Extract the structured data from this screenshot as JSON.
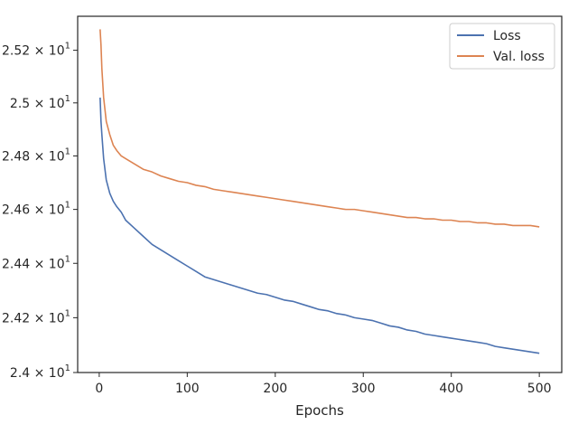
{
  "chart_data": {
    "type": "line",
    "title": "",
    "xlabel": "Epochs",
    "ylabel": "",
    "y_scale": "log",
    "xlim": [
      -24.5,
      525.5
    ],
    "ylim": [
      24.0,
      25.33
    ],
    "x_ticks": [
      0,
      100,
      200,
      300,
      400,
      500
    ],
    "x_tick_labels": [
      "0",
      "100",
      "200",
      "300",
      "400",
      "500"
    ],
    "y_ticks": [
      24.0,
      24.2,
      24.4,
      24.6,
      24.8,
      25.0,
      25.2
    ],
    "y_tick_labels": [
      {
        "mantissa": "2.4 × 10",
        "exponent": "1"
      },
      {
        "mantissa": "2.42 × 10",
        "exponent": "1"
      },
      {
        "mantissa": "2.44 × 10",
        "exponent": "1"
      },
      {
        "mantissa": "2.46 × 10",
        "exponent": "1"
      },
      {
        "mantissa": "2.48 × 10",
        "exponent": "1"
      },
      {
        "mantissa": "2.5 × 10",
        "exponent": "1"
      },
      {
        "mantissa": "2.52 × 10",
        "exponent": "1"
      }
    ],
    "grid": false,
    "legend_position": "top-right",
    "series": [
      {
        "name": "Loss",
        "color": "#4c72b0",
        "x": [
          1,
          2,
          3,
          5,
          8,
          12,
          16,
          20,
          25,
          30,
          40,
          50,
          60,
          70,
          80,
          90,
          100,
          110,
          120,
          130,
          140,
          150,
          160,
          170,
          180,
          190,
          200,
          210,
          220,
          230,
          240,
          250,
          260,
          270,
          280,
          290,
          300,
          310,
          320,
          330,
          340,
          350,
          360,
          370,
          380,
          390,
          400,
          410,
          420,
          430,
          440,
          450,
          460,
          470,
          480,
          490,
          500
        ],
        "y": [
          25.02,
          24.93,
          24.88,
          24.79,
          24.71,
          24.66,
          24.63,
          24.61,
          24.59,
          24.56,
          24.53,
          24.5,
          24.47,
          24.45,
          24.43,
          24.41,
          24.39,
          24.37,
          24.35,
          24.34,
          24.33,
          24.32,
          24.31,
          24.3,
          24.29,
          24.285,
          24.275,
          24.265,
          24.26,
          24.25,
          24.24,
          24.23,
          24.225,
          24.215,
          24.21,
          24.2,
          24.195,
          24.19,
          24.18,
          24.17,
          24.165,
          24.155,
          24.15,
          24.14,
          24.135,
          24.13,
          24.125,
          24.12,
          24.115,
          24.11,
          24.105,
          24.095,
          24.09,
          24.085,
          24.08,
          24.075,
          24.07
        ]
      },
      {
        "name": "Val. loss",
        "color": "#dd8452",
        "x": [
          1,
          2,
          3,
          5,
          8,
          12,
          16,
          20,
          25,
          30,
          40,
          50,
          60,
          70,
          80,
          90,
          100,
          110,
          120,
          130,
          140,
          150,
          160,
          170,
          180,
          190,
          200,
          210,
          220,
          230,
          240,
          250,
          260,
          270,
          280,
          290,
          300,
          310,
          320,
          330,
          340,
          350,
          360,
          370,
          380,
          390,
          400,
          410,
          420,
          430,
          440,
          450,
          460,
          470,
          480,
          490,
          500
        ],
        "y": [
          25.28,
          25.22,
          25.13,
          25.02,
          24.93,
          24.88,
          24.84,
          24.82,
          24.8,
          24.79,
          24.77,
          24.75,
          24.74,
          24.725,
          24.715,
          24.705,
          24.7,
          24.69,
          24.685,
          24.675,
          24.67,
          24.665,
          24.66,
          24.655,
          24.65,
          24.645,
          24.64,
          24.635,
          24.63,
          24.625,
          24.62,
          24.615,
          24.61,
          24.605,
          24.6,
          24.6,
          24.595,
          24.59,
          24.585,
          24.58,
          24.575,
          24.57,
          24.57,
          24.565,
          24.565,
          24.56,
          24.56,
          24.555,
          24.555,
          24.55,
          24.55,
          24.545,
          24.545,
          24.54,
          24.54,
          24.54,
          24.535
        ]
      }
    ]
  }
}
